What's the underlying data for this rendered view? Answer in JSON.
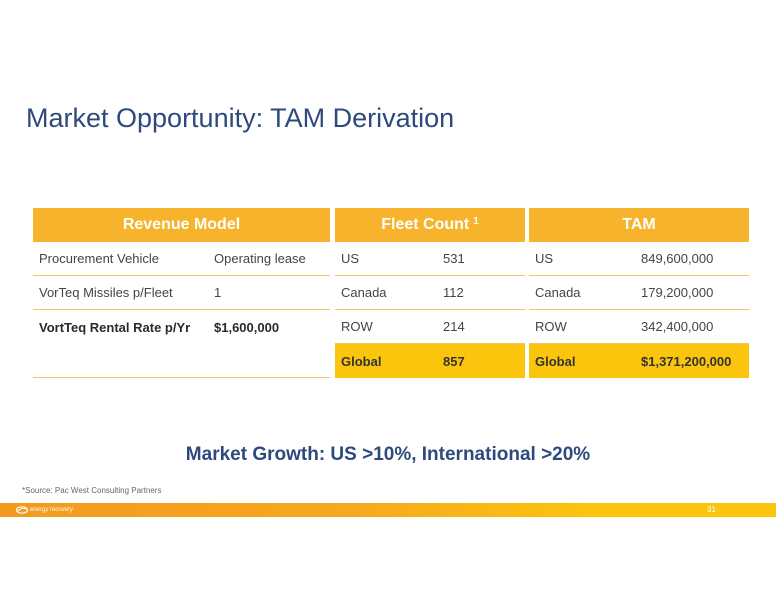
{
  "slide": {
    "title": "Market Opportunity: TAM Derivation",
    "growth_note": "Market Growth: US >10%, International >20%",
    "source": "*Source:  Pac West Consulting Partners",
    "page_number": "31",
    "logo_text": "energy recovery"
  },
  "revenue_model": {
    "header": "Revenue Model",
    "rows": [
      {
        "label": "Procurement Vehicle",
        "value": "Operating lease"
      },
      {
        "label": "VorTeq Missiles p/Fleet",
        "value": "1"
      },
      {
        "label": "VortTeq Rental Rate p/Yr",
        "value": "$1,600,000"
      }
    ]
  },
  "fleet_count": {
    "header": "Fleet Count",
    "header_sup": "1",
    "rows": [
      {
        "label": "US",
        "value": "531"
      },
      {
        "label": "Canada",
        "value": "112"
      },
      {
        "label": "ROW",
        "value": "214"
      },
      {
        "label": "Global",
        "value": "857"
      }
    ]
  },
  "tam": {
    "header": "TAM",
    "rows": [
      {
        "label": "US",
        "value": "849,600,000"
      },
      {
        "label": "Canada",
        "value": "179,200,000"
      },
      {
        "label": "ROW",
        "value": "342,400,000"
      },
      {
        "label": "Global",
        "value": "$1,371,200,000"
      }
    ]
  },
  "colors": {
    "accent_orange": "#f7b32b",
    "total_yellow": "#fbc50d",
    "title_blue": "#2e4a7d"
  }
}
